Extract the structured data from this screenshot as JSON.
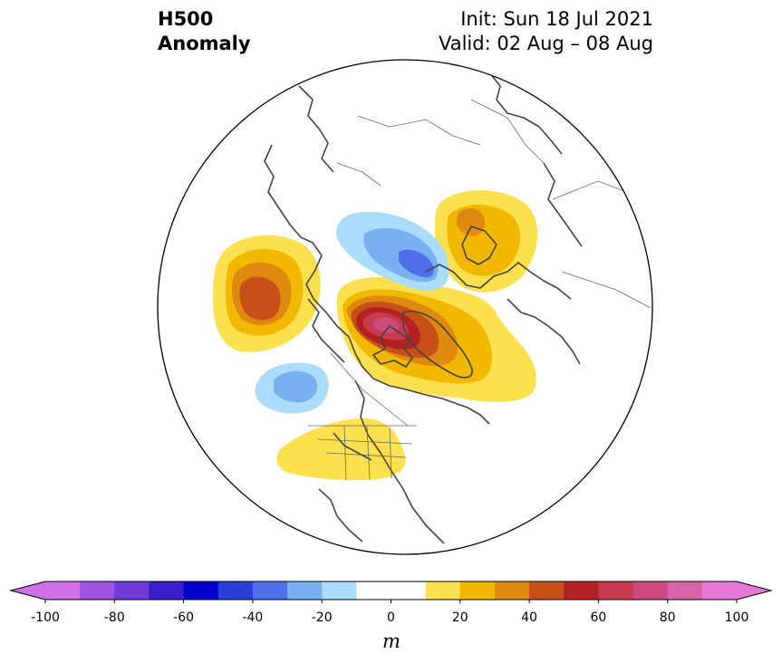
{
  "title": {
    "field": "H500",
    "subtitle": "Anomaly",
    "init": "Init: Sun 18 Jul 2021",
    "valid": "Valid: 02 Aug – 08 Aug"
  },
  "colorbar": {
    "unit": "m",
    "ticks": [
      "-100",
      "-80",
      "-60",
      "-40",
      "-20",
      "0",
      "20",
      "40",
      "60",
      "80",
      "100"
    ],
    "levels": [
      -100,
      -90,
      -80,
      -70,
      -60,
      -50,
      -40,
      -30,
      -20,
      -10,
      10,
      20,
      30,
      40,
      50,
      60,
      70,
      80,
      90,
      100
    ],
    "colors": [
      "#d070e6",
      "#a052e0",
      "#6e3ad8",
      "#3a20cc",
      "#0000cc",
      "#2a3ed8",
      "#4e6eea",
      "#78b0f2",
      "#aadcfc",
      "#ffffff",
      "#fde04e",
      "#f2b800",
      "#de8a10",
      "#c65018",
      "#b22222",
      "#c83a4e",
      "#cc4a80",
      "#d864a8",
      "#e678d8"
    ],
    "extend_low_color": "#d070e6",
    "extend_high_color": "#e678d8"
  },
  "map": {
    "projection": "north-polar-stereographic",
    "region": "Northern Hemisphere",
    "anomaly_features": [
      {
        "id": "ridge-canadian-arctic-greenland",
        "sign": "positive",
        "peak_m": 80
      },
      {
        "id": "ridge-north-pacific",
        "sign": "positive",
        "peak_m": 50
      },
      {
        "id": "ridge-west-siberia",
        "sign": "positive",
        "peak_m": 40
      },
      {
        "id": "ridge-north-central-us",
        "sign": "positive",
        "peak_m": 20
      },
      {
        "id": "trough-arctic-siberia",
        "sign": "negative",
        "peak_m": -40
      },
      {
        "id": "trough-gulf-of-alaska",
        "sign": "negative",
        "peak_m": -30
      }
    ]
  }
}
